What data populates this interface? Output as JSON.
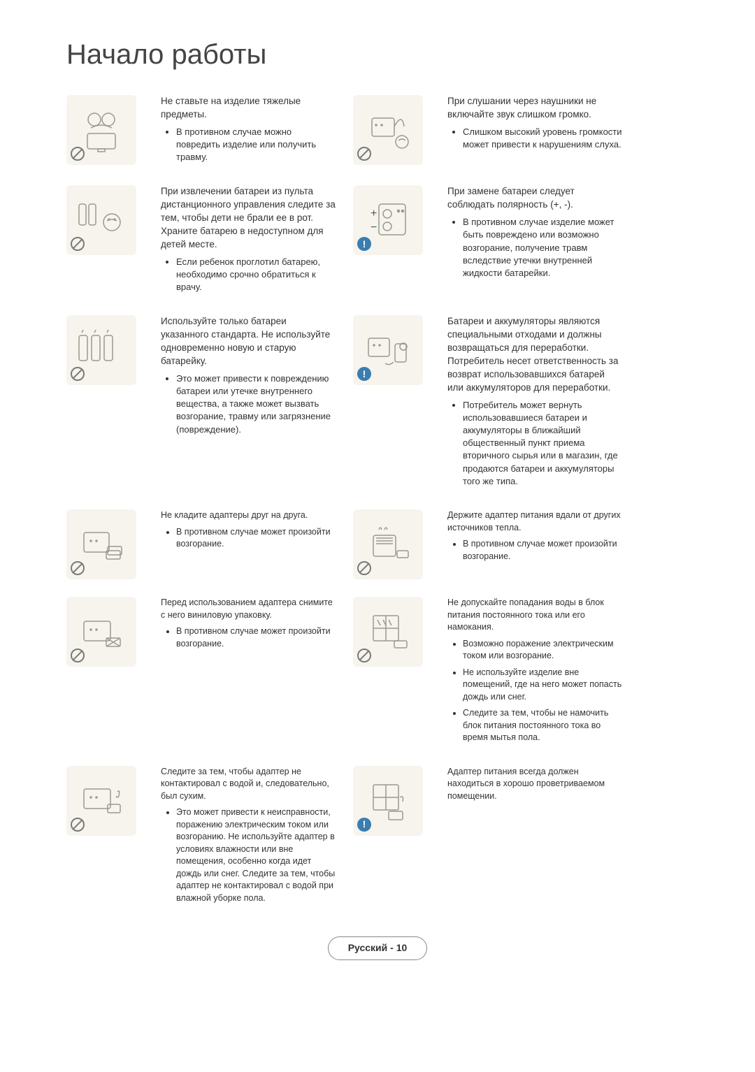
{
  "title": "Начало работы",
  "footer": "Русский - 10",
  "colors": {
    "page_bg": "#ffffff",
    "icon_bg": "#f6f4ed",
    "text": "#333333",
    "sketch_stroke": "#9a9a8f",
    "info_badge": "#3a7db0",
    "prohibit_stroke": "#7a7a7a",
    "footer_border": "#888888"
  },
  "rows": [
    {
      "c1_icon": "heavy",
      "c1_badge": "prohibit",
      "c2_text": "Не ставьте на изделие тяжелые предметы.",
      "c2_bullets": [
        "В противном случае можно повредить изделие или получить травму."
      ],
      "c3_icon": "headphone",
      "c3_badge": "prohibit",
      "c4_text": "При слушании через наушники не включайте звук слишком громко.",
      "c4_bullets": [
        "Слишком высокий уровень громкости может привести к нарушениям слуха."
      ]
    },
    {
      "c1_icon": "battery-child",
      "c1_badge": "prohibit",
      "c2_text": "При извлечении батареи из пульта дистанционного управления следите за тем, чтобы дети не брали ее в рот. Храните батарею в недоступном для детей месте.",
      "c2_bullets": [
        "Если ребенок проглотил батарею, необходимо срочно обратиться к врачу."
      ],
      "c3_icon": "polarity",
      "c3_badge": "info",
      "c4_text": "При замене батареи следует соблюдать полярность (+, -).",
      "c4_bullets": [
        "В противном случае изделие может быть повреждено или возможно возгорание, получение травм вследствие утечки внутренней жидкости батарейки."
      ]
    },
    {
      "c1_icon": "batteries",
      "c1_badge": "prohibit",
      "c2_text": "Используйте только батареи указанного стандарта. Не используйте одновременно новую и старую батарейку.",
      "c2_bullets": [
        "Это может привести к повреждению батареи или утечке внутреннего вещества, а также может вызвать возгорание, травму или загрязнение (повреждение)."
      ],
      "c3_icon": "recycle",
      "c3_badge": "info",
      "c4_text": "Батареи и аккумуляторы являются специальными отходами и должны возвращаться для переработки. Потребитель несет ответственность за возврат использовавшихся батарей или аккумуляторов для переработки.",
      "c4_bullets": [
        "Потребитель может вернуть использовавшиеся батареи и аккумуляторы в ближайший общественный пункт приема вторичного сырья или в магазин, где продаются батареи и аккумуляторы того же типа."
      ]
    },
    {
      "c1_icon": "adapter-stack",
      "c1_badge": "prohibit",
      "c2_text": "Не кладите адаптеры друг на друга.",
      "c2_bullets": [
        "В противном случае может произойти возгорание."
      ],
      "c3_icon": "heater",
      "c3_badge": "prohibit",
      "c4_text": "Держите адаптер питания вдали от других источников тепла.",
      "c4_bullets": [
        "В противном случае может произойти возгорание."
      ],
      "small": true
    },
    {
      "c1_icon": "vinyl",
      "c1_badge": "prohibit",
      "c2_text": "Перед использованием адаптера снимите с него виниловую упаковку.",
      "c2_bullets": [
        "В противном случае может произойти возгорание."
      ],
      "c3_icon": "rain",
      "c3_badge": "prohibit",
      "c4_text": "Не допускайте попадания воды в блок питания постоянного тока или его намокания.",
      "c4_bullets": [
        "Возможно поражение электрическим током или возгорание.",
        "Не используйте изделие вне помещений, где на него может попасть дождь или снег.",
        "Следите за тем, чтобы не намочить блок питания постоянного тока во время мытья пола."
      ],
      "small": true
    },
    {
      "c1_icon": "adapter-water",
      "c1_badge": "prohibit",
      "c2_text": "Следите за тем, чтобы адаптер не контактировал с водой и, следовательно, был сухим.",
      "c2_bullets": [
        "Это может привести к неисправности, поражению электрическим током или возгоранию. Не используйте адаптер в условиях влажности или вне помещения, особенно когда идет дождь или снег. Следите за тем, чтобы адаптер не контактировал с водой при влажной уборке пола."
      ],
      "c3_icon": "vent",
      "c3_badge": "info",
      "c4_text": "Адаптер питания всегда должен находиться в хорошо проветриваемом помещении.",
      "c4_bullets": [],
      "small": true
    }
  ]
}
